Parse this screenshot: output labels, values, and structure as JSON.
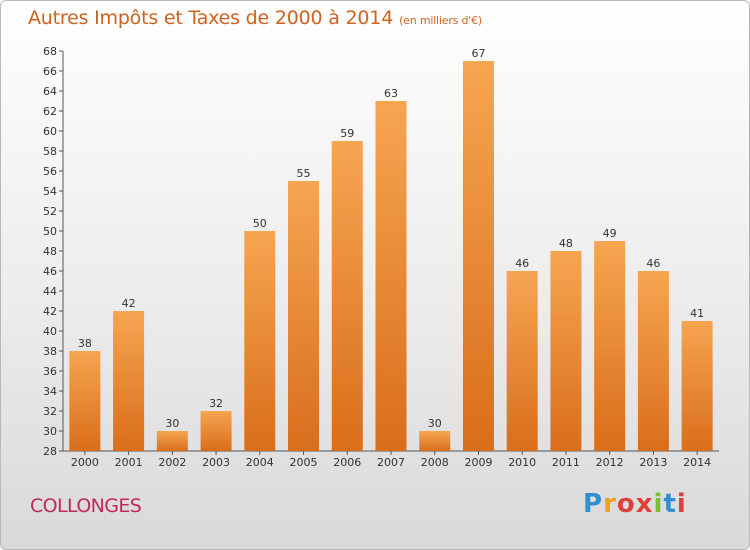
{
  "title": "Autres Impôts et Taxes de 2000 à 2014",
  "unit": "(en milliers d'€)",
  "commune": "COLLONGES",
  "logo": {
    "letters": [
      "P",
      "r",
      "o",
      "x",
      "i",
      "t",
      "i"
    ],
    "colors": [
      "#2f8fd0",
      "#f0a020",
      "#e0403c",
      "#e0403c",
      "#7cc030",
      "#2f8fd0",
      "#e0403c"
    ]
  },
  "colors": {
    "bar_light": "#f6a551",
    "bar_dark": "#d96e1b",
    "title": "#d0621f",
    "commune": "#c2285b"
  },
  "chart_data": {
    "type": "bar",
    "categories": [
      "2000",
      "2001",
      "2002",
      "2003",
      "2004",
      "2005",
      "2006",
      "2007",
      "2008",
      "2009",
      "2010",
      "2011",
      "2012",
      "2013",
      "2014"
    ],
    "values": [
      38,
      42,
      30,
      32,
      50,
      55,
      59,
      63,
      30,
      67,
      46,
      48,
      49,
      46,
      41
    ],
    "ylim": [
      28,
      68
    ],
    "yticks": [
      28,
      30,
      32,
      34,
      36,
      38,
      40,
      42,
      44,
      46,
      48,
      50,
      52,
      54,
      56,
      58,
      60,
      62,
      64,
      66,
      68
    ],
    "grid": false
  }
}
